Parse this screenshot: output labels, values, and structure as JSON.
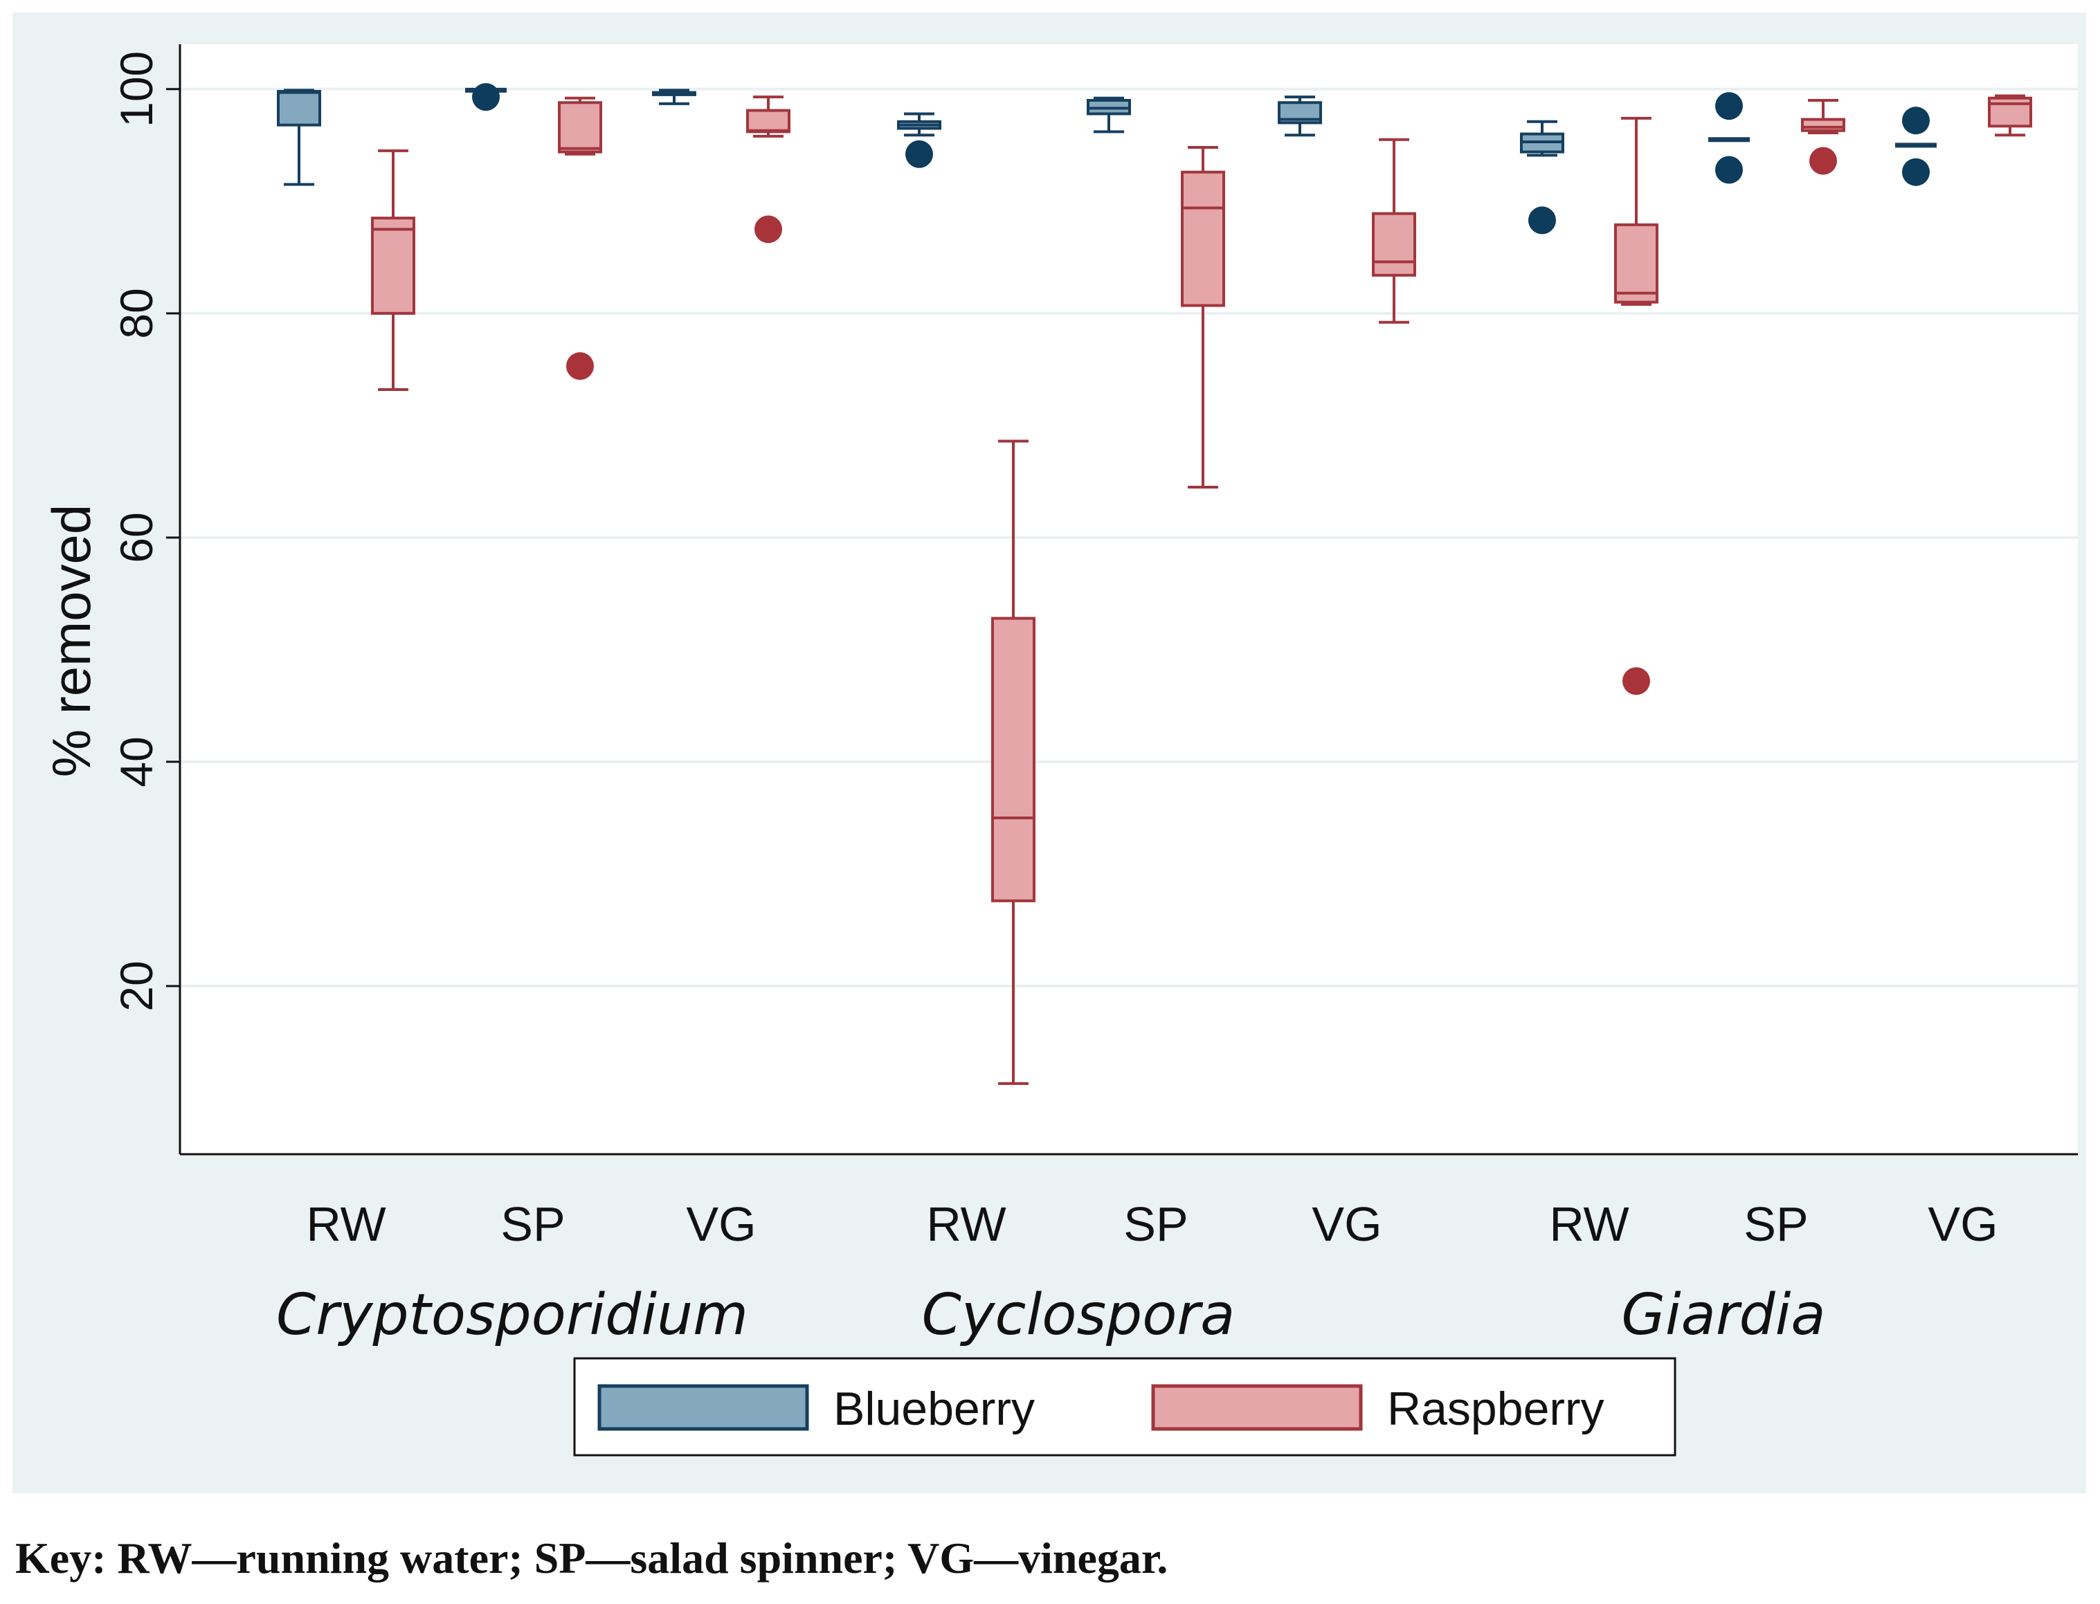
{
  "chart_data": {
    "type": "boxplot",
    "ylabel": "% removed",
    "ylim": [
      5,
      104
    ],
    "yticks": [
      20,
      40,
      60,
      80,
      100
    ],
    "grid": true,
    "legend": {
      "position": "bottom-center",
      "entries": [
        "Blueberry",
        "Raspberry"
      ]
    },
    "series_colors": {
      "Blueberry": {
        "fill": "#84a9bf",
        "stroke": "#163f5f",
        "dot": "#0d3c5c"
      },
      "Raspberry": {
        "fill": "#e4a6a9",
        "stroke": "#a2363d",
        "dot": "#a8343a"
      }
    },
    "groups": [
      {
        "label": "Cryptosporidium",
        "methods": [
          {
            "label": "RW",
            "Blueberry": {
              "min": 91.5,
              "q1": 96.8,
              "median": 99.7,
              "q3": 99.8,
              "max": 99.9,
              "outliers": []
            },
            "Raspberry": {
              "min": 73.2,
              "q1": 80.0,
              "median": 87.5,
              "q3": 88.5,
              "max": 94.5,
              "outliers": []
            }
          },
          {
            "label": "SP",
            "Blueberry": {
              "min": 99.9,
              "q1": 99.9,
              "median": 99.9,
              "q3": 99.9,
              "max": 99.9,
              "outliers": [
                99.3
              ]
            },
            "Raspberry": {
              "min": 94.2,
              "q1": 94.4,
              "median": 94.7,
              "q3": 98.8,
              "max": 99.2,
              "outliers": [
                75.3
              ]
            }
          },
          {
            "label": "VG",
            "Blueberry": {
              "min": 98.7,
              "q1": 99.5,
              "median": 99.6,
              "q3": 99.7,
              "max": 99.9,
              "outliers": []
            },
            "Raspberry": {
              "min": 95.8,
              "q1": 96.2,
              "median": 96.3,
              "q3": 98.1,
              "max": 99.3,
              "outliers": [
                87.5
              ]
            }
          }
        ]
      },
      {
        "label": "Cyclospora",
        "methods": [
          {
            "label": "RW",
            "Blueberry": {
              "min": 95.9,
              "q1": 96.5,
              "median": 96.8,
              "q3": 97.1,
              "max": 97.8,
              "outliers": [
                94.2
              ]
            },
            "Raspberry": {
              "min": 11.3,
              "q1": 27.6,
              "median": 35.0,
              "q3": 52.8,
              "max": 68.6,
              "outliers": []
            }
          },
          {
            "label": "SP",
            "Blueberry": {
              "min": 96.2,
              "q1": 97.8,
              "median": 98.3,
              "q3": 99.0,
              "max": 99.2,
              "outliers": []
            },
            "Raspberry": {
              "min": 64.5,
              "q1": 80.7,
              "median": 89.4,
              "q3": 92.6,
              "max": 94.8,
              "outliers": []
            }
          },
          {
            "label": "VG",
            "Blueberry": {
              "min": 95.9,
              "q1": 97.0,
              "median": 97.3,
              "q3": 98.8,
              "max": 99.3,
              "outliers": []
            },
            "Raspberry": {
              "min": 79.2,
              "q1": 83.4,
              "median": 84.6,
              "q3": 88.9,
              "max": 95.5,
              "outliers": []
            }
          }
        ]
      },
      {
        "label": "Giardia",
        "methods": [
          {
            "label": "RW",
            "Blueberry": {
              "min": 94.1,
              "q1": 94.4,
              "median": 95.3,
              "q3": 96.0,
              "max": 97.1,
              "outliers": [
                88.3
              ]
            },
            "Raspberry": {
              "min": 80.8,
              "q1": 81.0,
              "median": 81.8,
              "q3": 87.9,
              "max": 97.4,
              "outliers": [
                47.2
              ]
            }
          },
          {
            "label": "SP",
            "Blueberry": {
              "min": 95.5,
              "q1": 95.5,
              "median": 95.5,
              "q3": 95.5,
              "max": 95.5,
              "outliers": [
                98.5,
                92.8
              ]
            },
            "Raspberry": {
              "min": 96.1,
              "q1": 96.3,
              "median": 96.6,
              "q3": 97.3,
              "max": 99.0,
              "outliers": [
                93.6
              ]
            }
          },
          {
            "label": "VG",
            "Blueberry": {
              "min": 95.0,
              "q1": 95.0,
              "median": 95.0,
              "q3": 95.0,
              "max": 95.0,
              "outliers": [
                97.2,
                92.6
              ]
            },
            "Raspberry": {
              "min": 95.9,
              "q1": 96.7,
              "median": 98.7,
              "q3": 99.2,
              "max": 99.4,
              "outliers": []
            }
          }
        ]
      }
    ]
  },
  "caption": "Key: RW—running water; SP—salad spinner; VG—vinegar."
}
